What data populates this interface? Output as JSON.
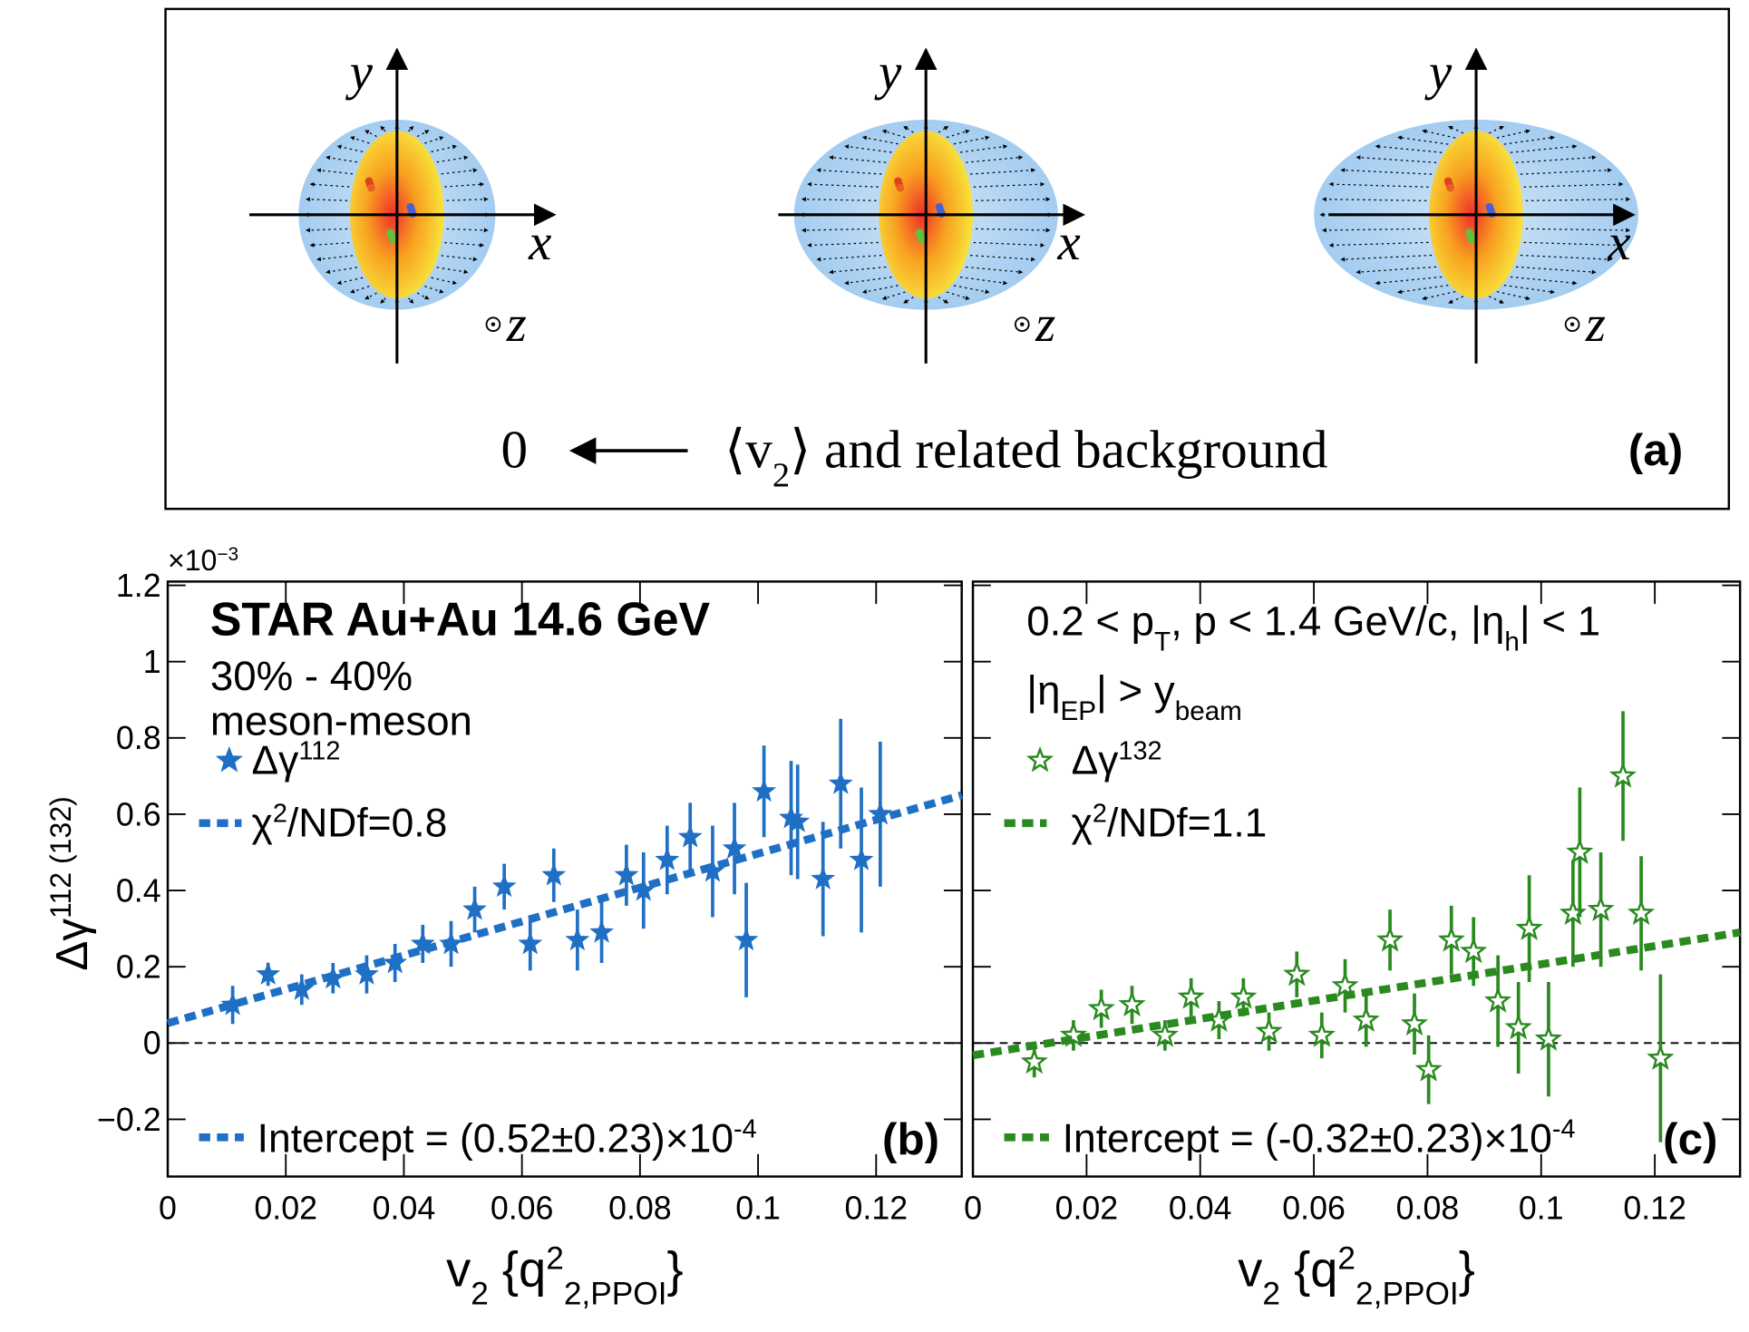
{
  "diagram": {
    "panels": [
      {
        "y": "y",
        "x": "x",
        "z": "z"
      },
      {
        "y": "y",
        "x": "x",
        "z": "z"
      },
      {
        "y": "y",
        "x": "x",
        "z": "z"
      }
    ],
    "arrow_left": "0",
    "caption": [
      {
        "text": "⟨v"
      },
      {
        "text": "2",
        "script": "sub"
      },
      {
        "text": "⟩ and related background"
      }
    ],
    "label": "(a)"
  },
  "chart_data": [
    {
      "type": "scatter",
      "panel_label": "(b)",
      "xlim": [
        0,
        0.1345
      ],
      "ylim": [
        -0.35,
        1.21
      ],
      "xticks": [
        0,
        0.02,
        0.04,
        0.06,
        0.08,
        0.1,
        0.12
      ],
      "yticks": [
        {
          "value": -0.2,
          "label": "−0.2"
        },
        0,
        0.2,
        0.4,
        0.6,
        0.8,
        1,
        1.2
      ],
      "ytick_labels": true,
      "y_multiplier": [
        {
          "text": "×10"
        },
        {
          "text": "−3",
          "script": "sup"
        }
      ],
      "ylabel": [
        {
          "text": "Δγ"
        },
        {
          "text": "112 (132)",
          "script": "sup"
        }
      ],
      "xlabel": [
        {
          "text": "v"
        },
        {
          "text": "2",
          "script": "sub"
        },
        {
          "text": " {q"
        },
        {
          "text": "2",
          "script": "sup"
        },
        {
          "text": "2,PPOI",
          "script": "sub"
        },
        {
          "text": "}"
        }
      ],
      "annotations": [
        [
          {
            "text": "STAR Au+Au 14.6 GeV"
          }
        ],
        [
          {
            "text": "30% - 40%"
          }
        ],
        [
          {
            "text": "meson-meson"
          }
        ]
      ],
      "intercept_label": [
        {
          "text": "Intercept = (0.52±0.23)×10"
        },
        {
          "text": "-4",
          "script": "sup"
        }
      ],
      "zero_line": true,
      "series": [
        {
          "name": [
            {
              "text": "Δγ"
            },
            {
              "text": "112",
              "script": "sup"
            }
          ],
          "color": "#1f6fc5",
          "marker": "filled-star",
          "x": [
            0.011,
            0.017,
            0.0227,
            0.028,
            0.0337,
            0.0385,
            0.0432,
            0.048,
            0.052,
            0.057,
            0.0614,
            0.0654,
            0.0694,
            0.0735,
            0.0777,
            0.0806,
            0.0846,
            0.0885,
            0.0923,
            0.096,
            0.098,
            0.101,
            0.1056,
            0.1067,
            0.111,
            0.114,
            0.1175,
            0.1207
          ],
          "values": [
            0.1,
            0.18,
            0.14,
            0.17,
            0.18,
            0.21,
            0.26,
            0.26,
            0.35,
            0.41,
            0.26,
            0.44,
            0.27,
            0.29,
            0.44,
            0.4,
            0.48,
            0.54,
            0.45,
            0.51,
            0.27,
            0.66,
            0.59,
            0.58,
            0.43,
            0.68,
            0.48,
            0.6
          ],
          "errors": [
            0.05,
            0.03,
            0.04,
            0.04,
            0.05,
            0.05,
            0.05,
            0.06,
            0.06,
            0.06,
            0.07,
            0.07,
            0.08,
            0.08,
            0.08,
            0.1,
            0.09,
            0.09,
            0.12,
            0.12,
            0.15,
            0.12,
            0.15,
            0.15,
            0.15,
            0.17,
            0.19,
            0.19
          ]
        },
        {
          "name": [
            {
              "text": "χ"
            },
            {
              "text": "2",
              "script": "sup"
            },
            {
              "text": "/NDf=0.8"
            }
          ],
          "color": "#1f6fc5",
          "marker": "dashed-line",
          "x": [
            0,
            0.1345
          ],
          "values": [
            0.052,
            0.65
          ]
        }
      ]
    },
    {
      "type": "scatter",
      "panel_label": "(c)",
      "xlim": [
        0,
        0.135
      ],
      "ylim": [
        -0.35,
        1.21
      ],
      "xticks": [
        0,
        0.02,
        0.04,
        0.06,
        0.08,
        0.1,
        0.12
      ],
      "yticks": [
        -0.2,
        0,
        0.2,
        0.4,
        0.6,
        0.8,
        1,
        1.2
      ],
      "ytick_labels": false,
      "xlabel": [
        {
          "text": "v"
        },
        {
          "text": "2",
          "script": "sub"
        },
        {
          "text": " {q"
        },
        {
          "text": "2",
          "script": "sup"
        },
        {
          "text": "2,PPOI",
          "script": "sub"
        },
        {
          "text": "}"
        }
      ],
      "annotations": [
        [
          {
            "text": "0.2 < p"
          },
          {
            "text": "T",
            "script": "sub"
          },
          {
            "text": ", p < 1.4 GeV/c, |η"
          },
          {
            "text": "h",
            "script": "sub"
          },
          {
            "text": "| < 1"
          }
        ],
        [
          {
            "text": "|η"
          },
          {
            "text": "EP",
            "script": "sub"
          },
          {
            "text": "| > y"
          },
          {
            "text": "beam",
            "script": "sub"
          }
        ]
      ],
      "intercept_label": [
        {
          "text": "Intercept = (-0.32±0.23)×10"
        },
        {
          "text": "-4",
          "script": "sup"
        }
      ],
      "zero_line": true,
      "series": [
        {
          "name": [
            {
              "text": "Δγ"
            },
            {
              "text": "132",
              "script": "sup"
            }
          ],
          "color": "#2a8a1f",
          "marker": "open-star",
          "x": [
            0.0108,
            0.0177,
            0.0226,
            0.028,
            0.0338,
            0.0384,
            0.0433,
            0.0476,
            0.0521,
            0.057,
            0.0614,
            0.0655,
            0.0692,
            0.0734,
            0.0777,
            0.0802,
            0.0842,
            0.0881,
            0.0924,
            0.096,
            0.0979,
            0.1013,
            0.1056,
            0.1068,
            0.1105,
            0.1144,
            0.1176,
            0.121
          ],
          "values": [
            -0.05,
            0.02,
            0.09,
            0.1,
            0.02,
            0.12,
            0.06,
            0.12,
            0.03,
            0.18,
            0.02,
            0.15,
            0.06,
            0.27,
            0.05,
            -0.07,
            0.27,
            0.24,
            0.11,
            0.04,
            0.3,
            0.01,
            0.34,
            0.5,
            0.35,
            0.7,
            0.34,
            -0.04
          ],
          "errors": [
            0.04,
            0.04,
            0.05,
            0.05,
            0.04,
            0.05,
            0.05,
            0.05,
            0.05,
            0.06,
            0.06,
            0.07,
            0.07,
            0.08,
            0.08,
            0.09,
            0.09,
            0.09,
            0.12,
            0.12,
            0.14,
            0.15,
            0.14,
            0.17,
            0.15,
            0.17,
            0.15,
            0.22
          ]
        },
        {
          "name": [
            {
              "text": "χ"
            },
            {
              "text": "2",
              "script": "sup"
            },
            {
              "text": "/NDf=1.1"
            }
          ],
          "color": "#2a8a1f",
          "marker": "dashed-line",
          "x": [
            0,
            0.135
          ],
          "values": [
            -0.032,
            0.29
          ]
        }
      ]
    }
  ]
}
